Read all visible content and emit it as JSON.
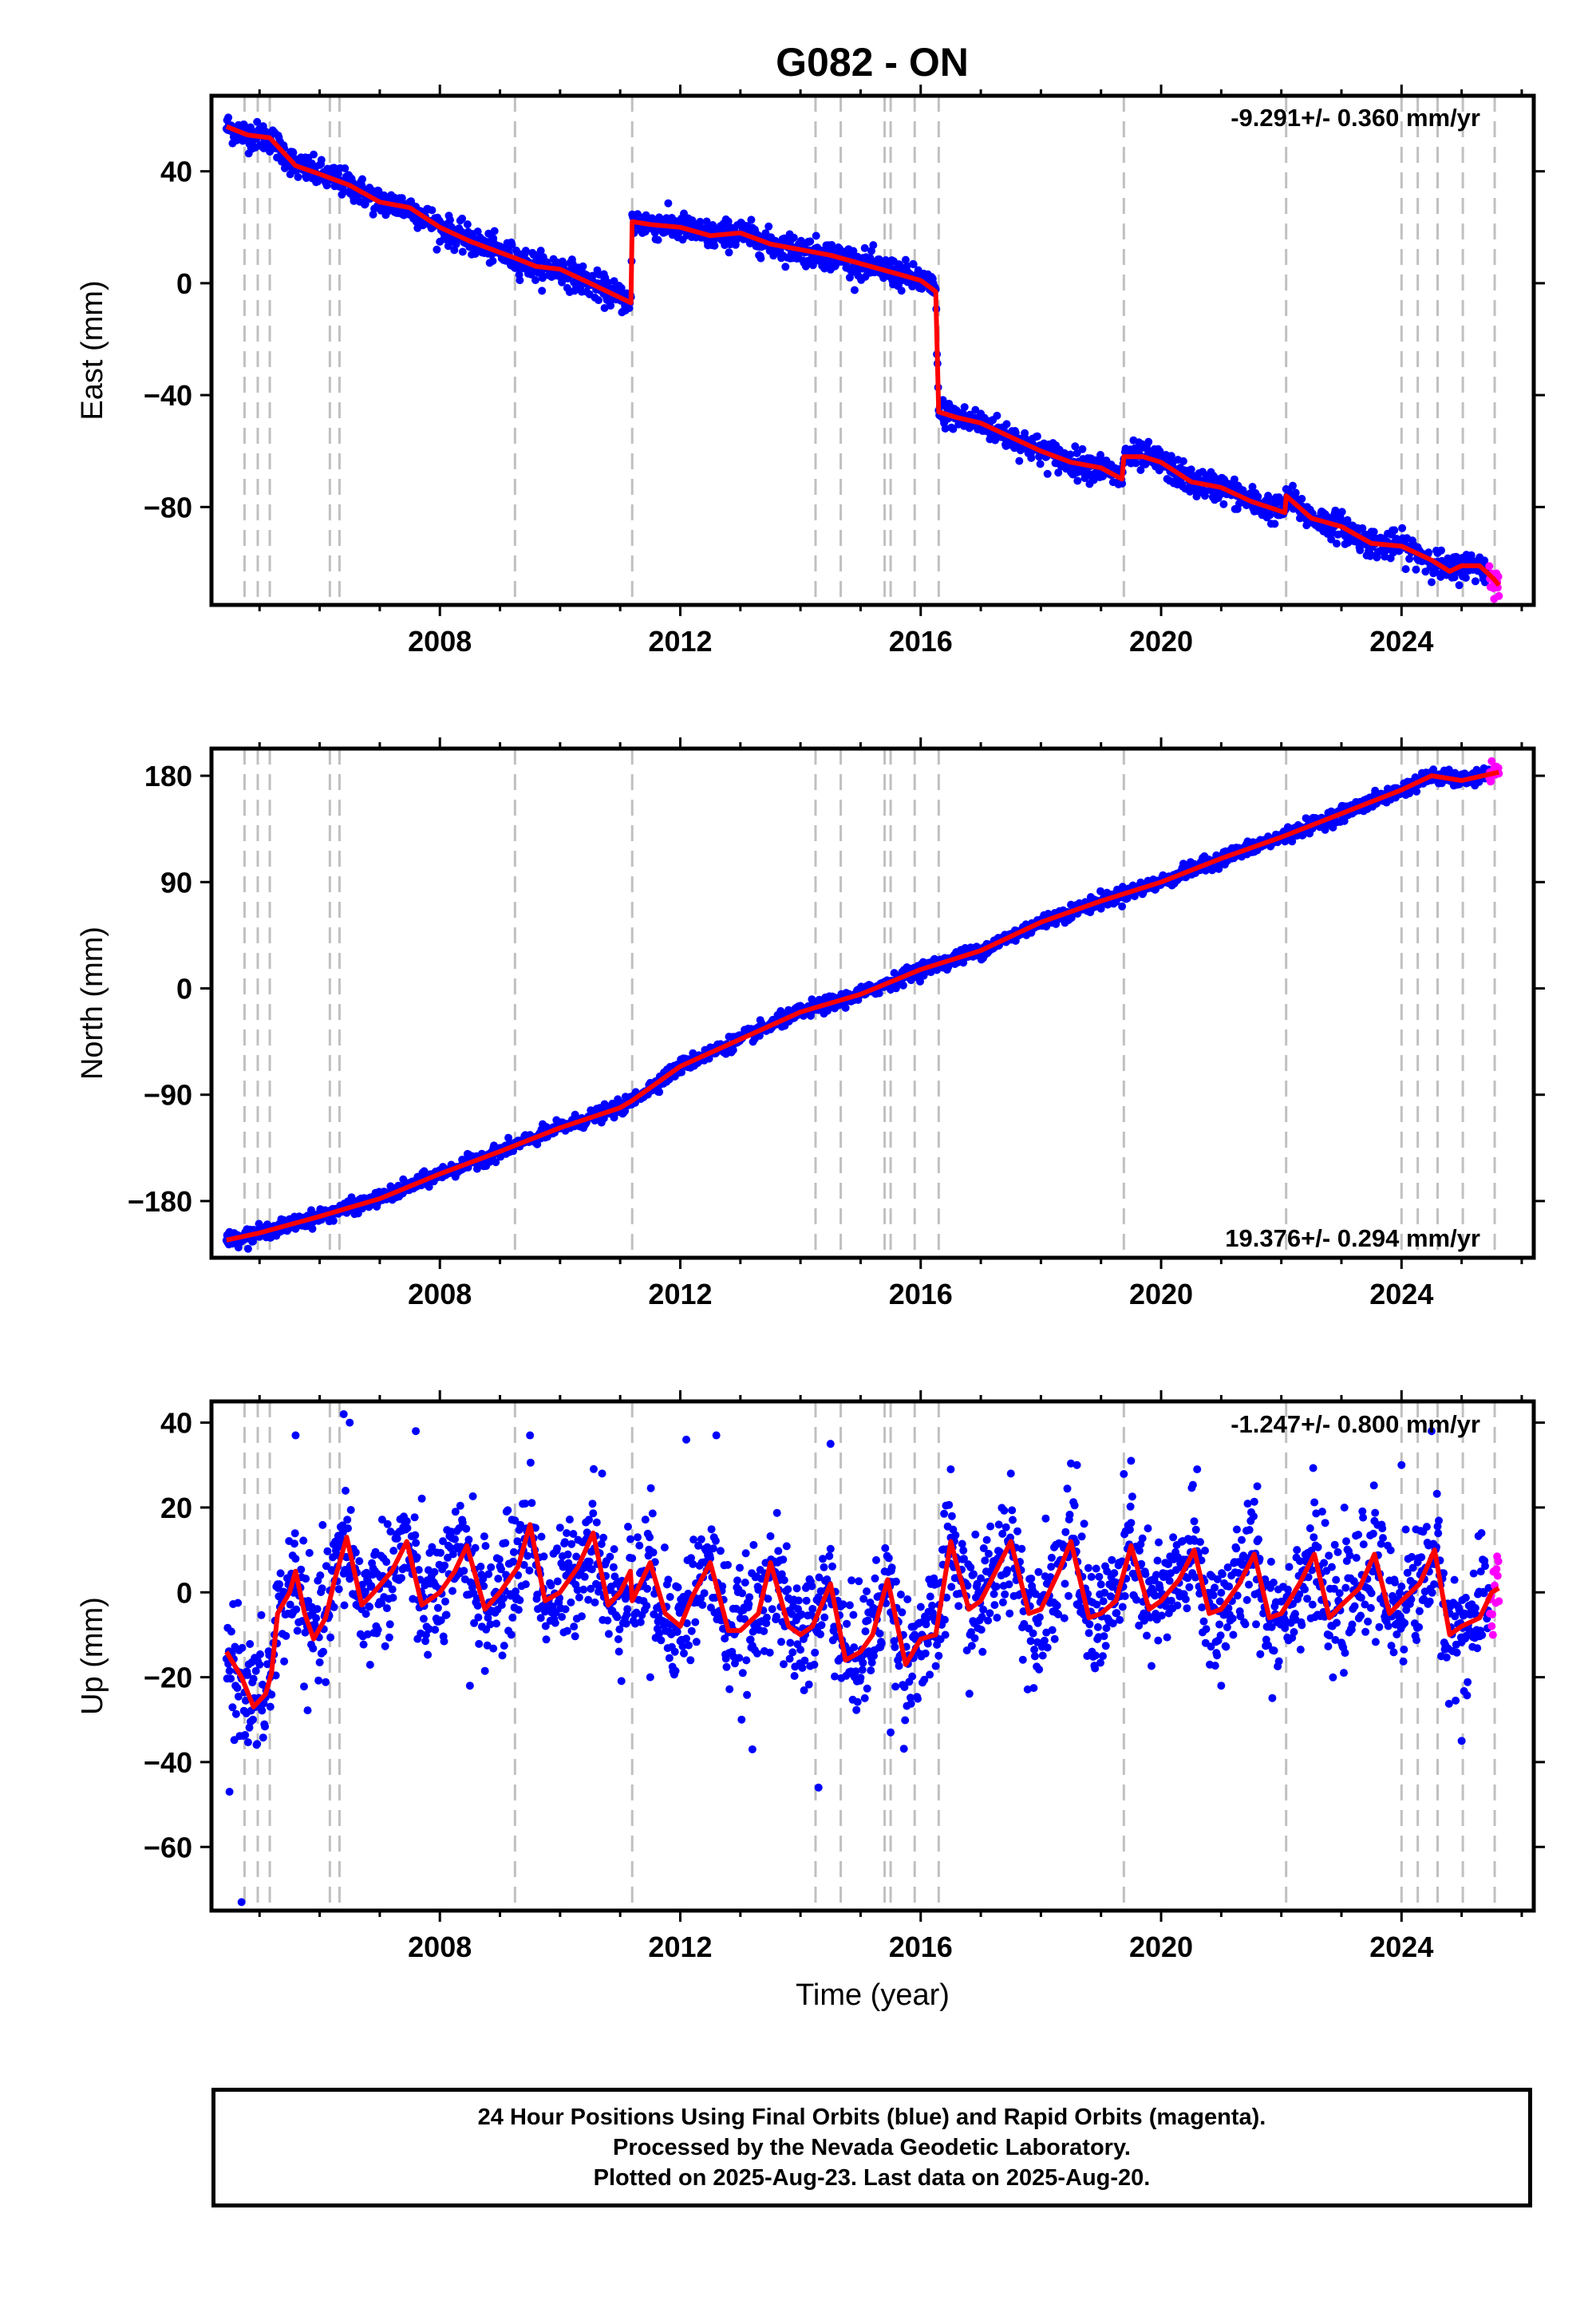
{
  "title": "G082 - ON",
  "colors": {
    "final": "#0000ff",
    "rapid": "#ff00ff",
    "model": "#ff0000",
    "events": "#c0c0c0"
  },
  "event_years": [
    2004.75,
    2004.97,
    2005.17,
    2006.17,
    2006.33,
    2009.25,
    2011.2,
    2014.25,
    2014.67,
    2015.4,
    2015.5,
    2015.9,
    2016.3,
    2019.38,
    2022.08,
    2024.0,
    2024.27,
    2024.6,
    2025.02,
    2025.55
  ],
  "chart_data": [
    {
      "type": "scatter",
      "ylabel": "East (mm)",
      "xlabel": "",
      "rate_label": "-9.291+/- 0.360 mm/yr",
      "xlim": [
        2004.2,
        2026.2
      ],
      "ylim": [
        -115,
        67
      ],
      "xticks": [
        2008,
        2012,
        2016,
        2020,
        2024
      ],
      "yticks": [
        40,
        0,
        -40,
        -80
      ],
      "noise": 2.5,
      "rapid_start": 2025.45,
      "model_knots": [
        [
          2004.45,
          56
        ],
        [
          2004.8,
          53
        ],
        [
          2005.17,
          52
        ],
        [
          2005.6,
          42
        ],
        [
          2006.0,
          39
        ],
        [
          2006.5,
          35
        ],
        [
          2007.0,
          29
        ],
        [
          2007.5,
          27
        ],
        [
          2008.0,
          20
        ],
        [
          2008.5,
          15
        ],
        [
          2009.0,
          11
        ],
        [
          2009.25,
          9
        ],
        [
          2009.6,
          6
        ],
        [
          2010.0,
          5
        ],
        [
          2010.5,
          0
        ],
        [
          2011.18,
          -7
        ],
        [
          2011.2,
          22
        ],
        [
          2011.5,
          21
        ],
        [
          2012.0,
          20
        ],
        [
          2012.5,
          17
        ],
        [
          2013.0,
          18
        ],
        [
          2013.5,
          14
        ],
        [
          2014.0,
          12
        ],
        [
          2014.5,
          10
        ],
        [
          2015.0,
          7
        ],
        [
          2015.5,
          4
        ],
        [
          2016.0,
          1
        ],
        [
          2016.25,
          -3
        ],
        [
          2016.3,
          -46
        ],
        [
          2016.6,
          -48
        ],
        [
          2017.0,
          -50
        ],
        [
          2017.5,
          -55
        ],
        [
          2018.0,
          -60
        ],
        [
          2018.5,
          -64
        ],
        [
          2019.0,
          -66
        ],
        [
          2019.35,
          -70
        ],
        [
          2019.38,
          -62
        ],
        [
          2019.7,
          -62
        ],
        [
          2020.0,
          -64
        ],
        [
          2020.5,
          -71
        ],
        [
          2021.0,
          -73
        ],
        [
          2021.5,
          -78
        ],
        [
          2022.06,
          -82
        ],
        [
          2022.08,
          -76
        ],
        [
          2022.5,
          -84
        ],
        [
          2023.0,
          -87
        ],
        [
          2023.5,
          -93
        ],
        [
          2024.0,
          -94
        ],
        [
          2024.5,
          -99
        ],
        [
          2024.8,
          -103
        ],
        [
          2025.0,
          -101
        ],
        [
          2025.3,
          -101
        ],
        [
          2025.55,
          -106
        ],
        [
          2025.62,
          -108
        ]
      ]
    },
    {
      "type": "scatter",
      "ylabel": "North (mm)",
      "xlabel": "",
      "rate_label": "19.376+/- 0.294 mm/yr",
      "xlim": [
        2004.2,
        2026.2
      ],
      "ylim": [
        -228,
        203
      ],
      "xticks": [
        2008,
        2012,
        2016,
        2020,
        2024
      ],
      "yticks": [
        180,
        90,
        0,
        -90,
        -180
      ],
      "noise": 3.0,
      "rapid_start": 2025.45,
      "model_knots": [
        [
          2004.45,
          -213
        ],
        [
          2005.0,
          -207
        ],
        [
          2006.0,
          -193
        ],
        [
          2007.0,
          -178
        ],
        [
          2008.0,
          -157
        ],
        [
          2009.0,
          -138
        ],
        [
          2010.0,
          -118
        ],
        [
          2011.0,
          -101
        ],
        [
          2011.2,
          -95
        ],
        [
          2012.0,
          -66
        ],
        [
          2013.0,
          -43
        ],
        [
          2014.0,
          -20
        ],
        [
          2015.0,
          -5
        ],
        [
          2016.0,
          16
        ],
        [
          2017.0,
          32
        ],
        [
          2018.0,
          56
        ],
        [
          2019.0,
          74
        ],
        [
          2020.0,
          90
        ],
        [
          2021.0,
          110
        ],
        [
          2022.0,
          128
        ],
        [
          2023.0,
          148
        ],
        [
          2024.0,
          168
        ],
        [
          2024.5,
          180
        ],
        [
          2025.0,
          176
        ],
        [
          2025.62,
          183
        ]
      ]
    },
    {
      "type": "scatter",
      "ylabel": "Up (mm)",
      "xlabel": "Time (year)",
      "rate_label": "-1.247+/- 0.800 mm/yr",
      "xlim": [
        2004.2,
        2026.2
      ],
      "ylim": [
        -75,
        45
      ],
      "xticks": [
        2008,
        2012,
        2016,
        2020,
        2024
      ],
      "yticks": [
        40,
        20,
        0,
        -20,
        -40,
        -60
      ],
      "noise": 7.0,
      "rapid_start": 2025.45,
      "model_knots": [
        [
          2004.45,
          -14
        ],
        [
          2004.7,
          -20
        ],
        [
          2004.9,
          -27
        ],
        [
          2005.1,
          -24
        ],
        [
          2005.2,
          -19
        ],
        [
          2005.3,
          -5
        ],
        [
          2005.5,
          0
        ],
        [
          2005.6,
          5
        ],
        [
          2005.75,
          -5
        ],
        [
          2005.9,
          -11
        ],
        [
          2006.1,
          -6
        ],
        [
          2006.25,
          3
        ],
        [
          2006.45,
          13
        ],
        [
          2006.7,
          -3
        ],
        [
          2006.9,
          0
        ],
        [
          2007.2,
          5
        ],
        [
          2007.45,
          12
        ],
        [
          2007.7,
          -3
        ],
        [
          2008.0,
          0
        ],
        [
          2008.25,
          5
        ],
        [
          2008.45,
          11
        ],
        [
          2008.75,
          -4
        ],
        [
          2009.0,
          0
        ],
        [
          2009.3,
          6
        ],
        [
          2009.5,
          16
        ],
        [
          2009.75,
          -2
        ],
        [
          2010.0,
          0
        ],
        [
          2010.3,
          6
        ],
        [
          2010.55,
          14
        ],
        [
          2010.8,
          -3
        ],
        [
          2011.0,
          0
        ],
        [
          2011.17,
          5
        ],
        [
          2011.2,
          -2
        ],
        [
          2011.5,
          7
        ],
        [
          2011.75,
          -5
        ],
        [
          2012.0,
          -8
        ],
        [
          2012.2,
          -1
        ],
        [
          2012.5,
          7
        ],
        [
          2012.8,
          -9
        ],
        [
          2013.0,
          -9
        ],
        [
          2013.3,
          -5
        ],
        [
          2013.5,
          7
        ],
        [
          2013.8,
          -8
        ],
        [
          2014.0,
          -10
        ],
        [
          2014.2,
          -8
        ],
        [
          2014.5,
          2
        ],
        [
          2014.75,
          -16
        ],
        [
          2015.0,
          -14
        ],
        [
          2015.2,
          -10
        ],
        [
          2015.45,
          3
        ],
        [
          2015.75,
          -17
        ],
        [
          2016.0,
          -11
        ],
        [
          2016.25,
          -10
        ],
        [
          2016.5,
          12
        ],
        [
          2016.8,
          -4
        ],
        [
          2017.0,
          -2
        ],
        [
          2017.25,
          5
        ],
        [
          2017.5,
          12
        ],
        [
          2017.8,
          -5
        ],
        [
          2018.0,
          -4
        ],
        [
          2018.3,
          5
        ],
        [
          2018.5,
          12
        ],
        [
          2018.8,
          -6
        ],
        [
          2019.0,
          -5
        ],
        [
          2019.25,
          -2
        ],
        [
          2019.5,
          11
        ],
        [
          2019.8,
          -4
        ],
        [
          2020.0,
          -2
        ],
        [
          2020.3,
          3
        ],
        [
          2020.55,
          10
        ],
        [
          2020.8,
          -5
        ],
        [
          2021.0,
          -4
        ],
        [
          2021.3,
          2
        ],
        [
          2021.55,
          9
        ],
        [
          2021.8,
          -6
        ],
        [
          2022.0,
          -5
        ],
        [
          2022.3,
          2
        ],
        [
          2022.55,
          9
        ],
        [
          2022.8,
          -6
        ],
        [
          2023.0,
          -3
        ],
        [
          2023.3,
          1
        ],
        [
          2023.55,
          9
        ],
        [
          2023.8,
          -5
        ],
        [
          2024.0,
          -2
        ],
        [
          2024.3,
          2
        ],
        [
          2024.55,
          10
        ],
        [
          2024.8,
          -10
        ],
        [
          2025.0,
          -8
        ],
        [
          2025.3,
          -6
        ],
        [
          2025.5,
          0
        ],
        [
          2025.62,
          1
        ]
      ],
      "outliers": [
        [
          2004.7,
          -73
        ],
        [
          2004.5,
          -47
        ],
        [
          2005.6,
          37
        ],
        [
          2006.4,
          42
        ],
        [
          2006.5,
          40
        ],
        [
          2007.6,
          38
        ],
        [
          2009.5,
          37
        ],
        [
          2010.7,
          28
        ],
        [
          2012.1,
          36
        ],
        [
          2012.6,
          37
        ],
        [
          2013.2,
          -37
        ],
        [
          2014.3,
          -46
        ],
        [
          2014.5,
          35
        ],
        [
          2015.5,
          -33
        ],
        [
          2016.5,
          29
        ],
        [
          2017.5,
          28
        ],
        [
          2018.6,
          30
        ],
        [
          2019.5,
          31
        ],
        [
          2020.6,
          29
        ],
        [
          2021.6,
          25
        ],
        [
          2024.0,
          30
        ],
        [
          2024.5,
          38
        ],
        [
          2025.0,
          -35
        ],
        [
          2008.5,
          -22
        ],
        [
          2011.5,
          -20
        ],
        [
          2021.0,
          -22
        ]
      ]
    }
  ],
  "footer": {
    "line1": "24 Hour Positions Using Final Orbits (blue) and Rapid Orbits (magenta).",
    "line2": "Processed by the Nevada Geodetic Laboratory.",
    "line3": "Plotted on 2025-Aug-23. Last data on 2025-Aug-20."
  }
}
